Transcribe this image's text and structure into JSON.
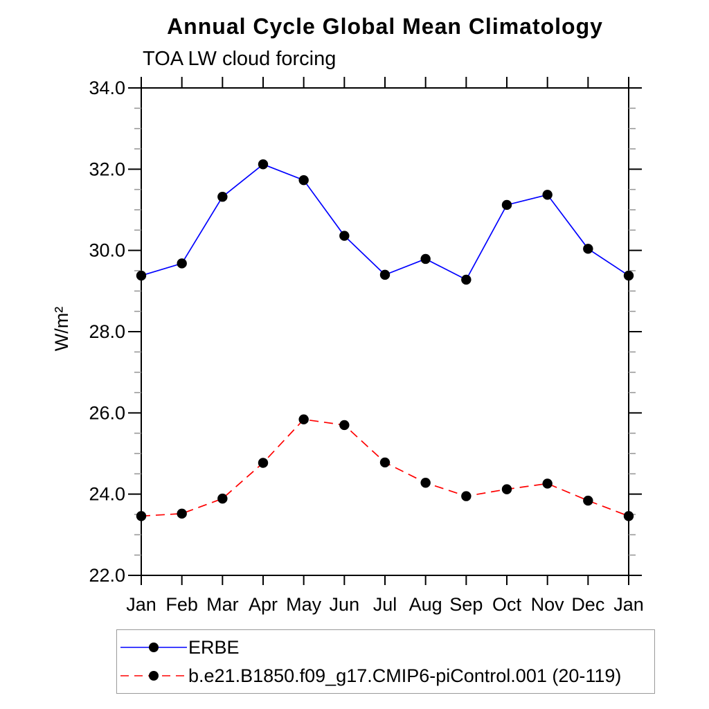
{
  "chart_data": {
    "type": "line",
    "title": "Annual Cycle Global Mean Climatology",
    "subtitle": "TOA LW cloud forcing",
    "ylabel": "W/m²",
    "xlabel": "",
    "categories": [
      "Jan",
      "Feb",
      "Mar",
      "Apr",
      "May",
      "Jun",
      "Jul",
      "Aug",
      "Sep",
      "Oct",
      "Nov",
      "Dec",
      "Jan"
    ],
    "series": [
      {
        "name": "ERBE",
        "color": "#0000ff",
        "line_style": "solid",
        "marker": "filled-circle",
        "marker_color": "#000000",
        "values": [
          29.38,
          29.68,
          31.32,
          32.12,
          31.73,
          30.36,
          29.4,
          29.79,
          29.28,
          31.12,
          31.37,
          30.04,
          29.38
        ]
      },
      {
        "name": "b.e21.B1850.f09_g17.CMIP6-piControl.001 (20-119)",
        "color": "#ff0000",
        "line_style": "dashed",
        "marker": "filled-circle",
        "marker_color": "#000000",
        "values": [
          23.46,
          23.52,
          23.89,
          24.77,
          25.84,
          25.7,
          24.78,
          24.28,
          23.95,
          24.12,
          24.26,
          23.84,
          23.46
        ]
      }
    ],
    "ylim": [
      22.0,
      34.0
    ],
    "y_major_ticks": [
      22,
      24,
      26,
      28,
      30,
      32,
      34
    ],
    "y_tick_labels": [
      "22.0",
      "24.0",
      "26.0",
      "28.0",
      "30.0",
      "32.0",
      "34.0"
    ],
    "y_minor_step": 0.5,
    "grid": false,
    "frame": "box-with-outward-ticks",
    "legend_position": "bottom-left-box",
    "minor_tick_color": "#999999",
    "axis_color": "#000000"
  }
}
